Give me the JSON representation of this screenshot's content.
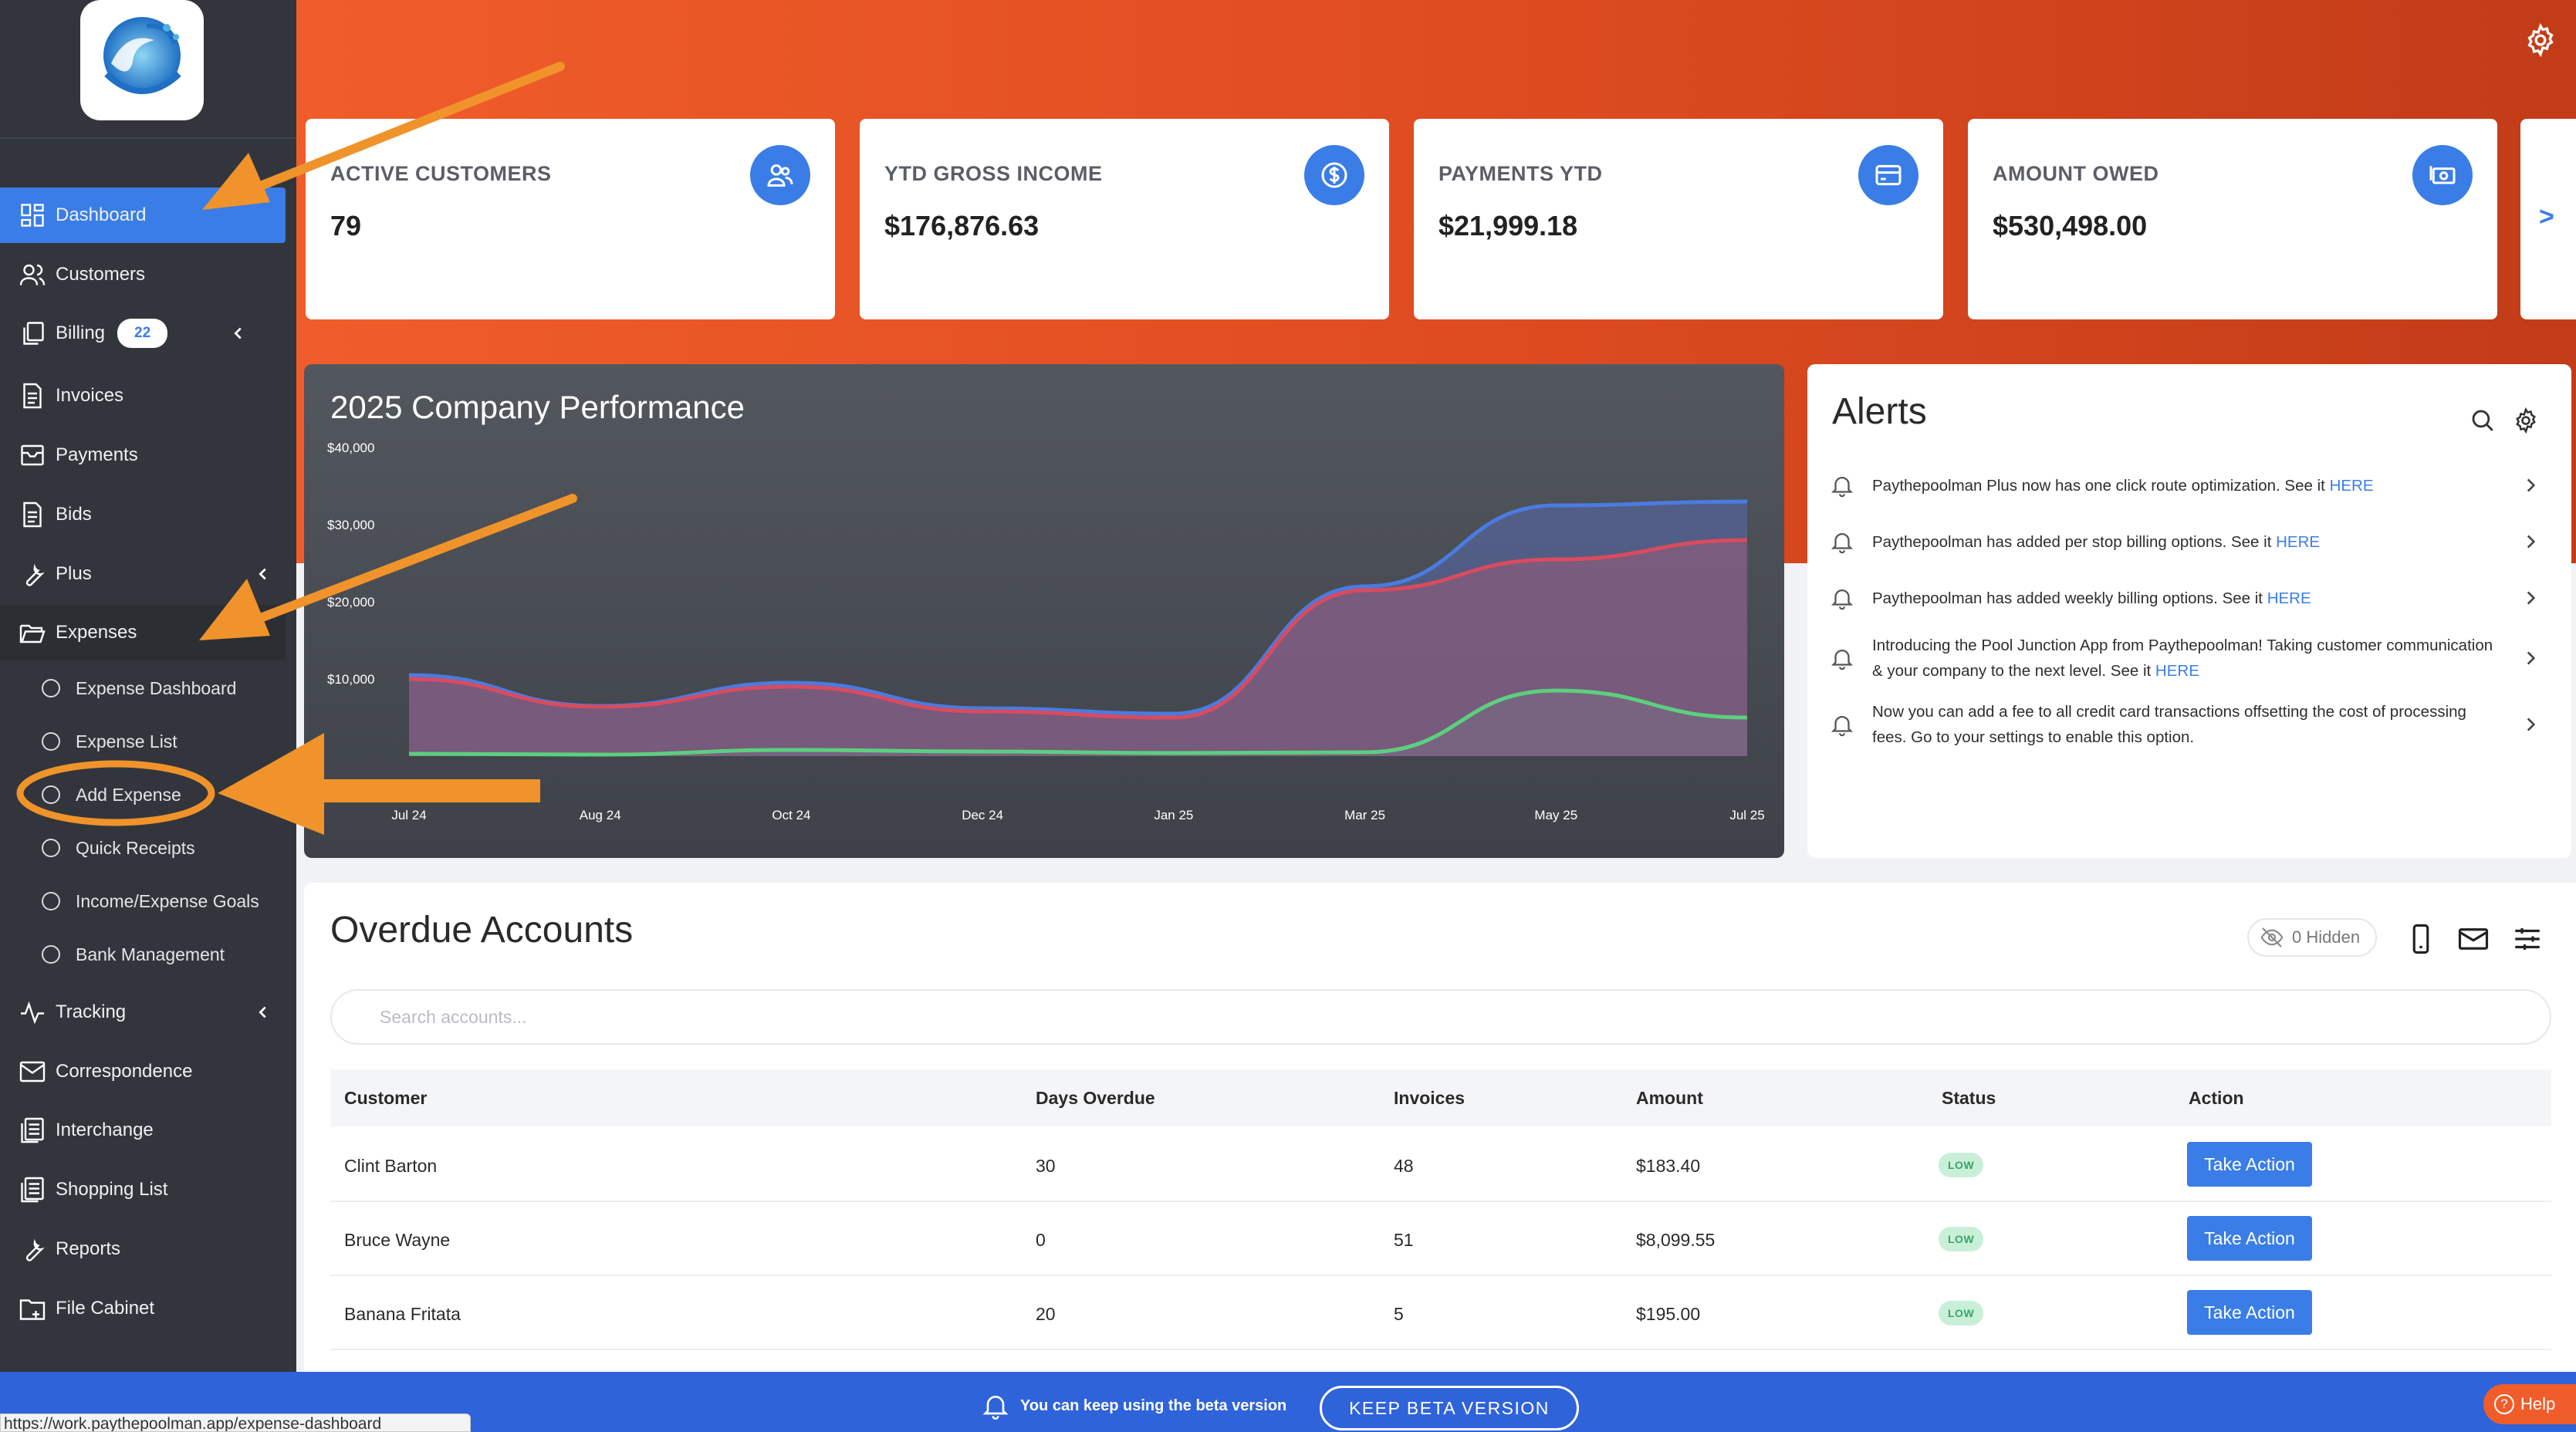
{
  "sidebar": {
    "logo_alt": "PAYTHEPOOLMAN",
    "items": [
      {
        "label": "Dashboard",
        "icon": "dashboard-icon"
      },
      {
        "label": "Customers",
        "icon": "users-icon"
      },
      {
        "label": "Billing",
        "icon": "copy-icon",
        "badge": "22"
      },
      {
        "label": "Invoices",
        "icon": "document-icon"
      },
      {
        "label": "Payments",
        "icon": "inbox-icon"
      },
      {
        "label": "Bids",
        "icon": "document-icon"
      },
      {
        "label": "Plus",
        "icon": "wrench-icon"
      },
      {
        "label": "Expenses",
        "icon": "folder-icon"
      },
      {
        "label": "Tracking",
        "icon": "activity-icon"
      },
      {
        "label": "Correspondence",
        "icon": "mail-icon"
      },
      {
        "label": "Interchange",
        "icon": "list-icon"
      },
      {
        "label": "Shopping List",
        "icon": "list-icon"
      },
      {
        "label": "Reports",
        "icon": "wrench-icon"
      },
      {
        "label": "File Cabinet",
        "icon": "folder-icon"
      }
    ],
    "expense_sub": [
      "Expense Dashboard",
      "Expense List",
      "Add Expense",
      "Quick Receipts",
      "Income/Expense Goals",
      "Bank Management"
    ]
  },
  "stats": [
    {
      "label": "ACTIVE CUSTOMERS",
      "value": "79",
      "icon": "users-icon"
    },
    {
      "label": "YTD GROSS INCOME",
      "value": "$176,876.63",
      "icon": "dollar-icon"
    },
    {
      "label": "PAYMENTS YTD",
      "value": "$21,999.18",
      "icon": "card-icon"
    },
    {
      "label": "AMOUNT OWED",
      "value": "$530,498.00",
      "icon": "cash-icon"
    }
  ],
  "stats_next": ">",
  "performance": {
    "title": "2025 Company Performance"
  },
  "chart_data": {
    "type": "area",
    "title": "2025 Company Performance",
    "x": [
      "Jul 24",
      "Aug 24",
      "Oct 24",
      "Dec 24",
      "Jan 25",
      "Mar 25",
      "May 25",
      "Jul 25"
    ],
    "y_ticks": [
      "$40,000",
      "$30,000",
      "$20,000",
      "$10,000"
    ],
    "ylim": [
      0,
      40000
    ],
    "series": [
      {
        "color": "#4a7be0",
        "values": [
          10500,
          6500,
          9500,
          6200,
          5500,
          22000,
          32500,
          33000
        ]
      },
      {
        "color": "#d94b5e",
        "values": [
          10000,
          6400,
          9000,
          5800,
          5000,
          21500,
          25500,
          28000
        ]
      },
      {
        "color": "#5ccf7e",
        "values": [
          300,
          200,
          800,
          600,
          400,
          500,
          8500,
          5000
        ]
      }
    ],
    "grid": false,
    "legend": "none"
  },
  "alerts": {
    "title": "Alerts",
    "items": [
      {
        "text": "Paythepoolman Plus now has one click route optimization. See it ",
        "link": "HERE"
      },
      {
        "text": "Paythepoolman has added per stop billing options. See it ",
        "link": "HERE"
      },
      {
        "text": "Paythepoolman has added weekly billing options. See it ",
        "link": "HERE"
      },
      {
        "text": "Introducing the Pool Junction App from Paythepoolman! Taking customer communication & your company to the next level. See it ",
        "link": "HERE"
      },
      {
        "text": "Now you can add a fee to all credit card transactions offsetting the cost of processing fees. Go to your settings to enable this option.",
        "link": ""
      }
    ]
  },
  "overdue": {
    "title": "Overdue Accounts",
    "hidden_label": "0 Hidden",
    "search_placeholder": "Search accounts...",
    "columns": [
      "Customer",
      "Days Overdue",
      "Invoices",
      "Amount",
      "Status",
      "Action"
    ],
    "rows": [
      {
        "customer": "Clint Barton",
        "days": "30",
        "invoices": "48",
        "amount": "$183.40",
        "status": "LOW",
        "action": "Take Action"
      },
      {
        "customer": "Bruce Wayne",
        "days": "0",
        "invoices": "51",
        "amount": "$8,099.55",
        "status": "LOW",
        "action": "Take Action"
      },
      {
        "customer": "Banana Fritata",
        "days": "20",
        "invoices": "5",
        "amount": "$195.00",
        "status": "LOW",
        "action": "Take Action"
      }
    ]
  },
  "beta": {
    "message": "You can keep using the beta version",
    "button": "KEEP BETA VERSION"
  },
  "help": "Help",
  "status_url": "https://work.paythepoolman.app/expense-dashboard",
  "colors": {
    "accent": "#3a7de6",
    "hero": "#e8542a",
    "sidebar": "#32363c",
    "annotation": "#f0932b"
  }
}
